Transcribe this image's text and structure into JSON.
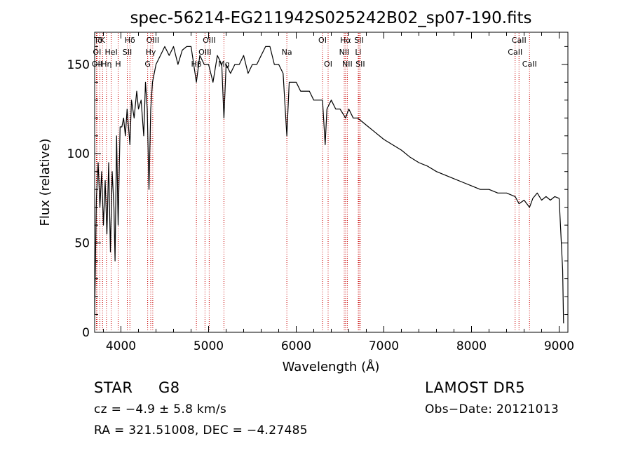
{
  "chart_data": {
    "type": "line",
    "title": "spec-56214-EG211942S025242B02_sp07-190.fits",
    "xlabel": "Wavelength (Å)",
    "ylabel": "Flux (relative)",
    "xlim": [
      3700,
      9100
    ],
    "ylim": [
      0,
      168
    ],
    "xticks": [
      4000,
      5000,
      6000,
      7000,
      8000,
      9000
    ],
    "yticks": [
      0,
      50,
      100,
      150
    ],
    "grid": false,
    "line_color": "#000000",
    "marker_color": "#c80000",
    "series": [
      {
        "x": [
          3700,
          3720,
          3740,
          3760,
          3780,
          3800,
          3820,
          3840,
          3860,
          3880,
          3900,
          3920,
          3933,
          3950,
          3968,
          3990,
          4010,
          4030,
          4050,
          4070,
          4102,
          4120,
          4150,
          4180,
          4200,
          4230,
          4260,
          4280,
          4300,
          4320,
          4340,
          4360,
          4400,
          4450,
          4500,
          4550,
          4600,
          4650,
          4700,
          4750,
          4800,
          4861,
          4900,
          4950,
          5000,
          5050,
          5100,
          5150,
          5175,
          5200,
          5250,
          5300,
          5350,
          5400,
          5450,
          5500,
          5550,
          5600,
          5650,
          5700,
          5750,
          5800,
          5850,
          5893,
          5920,
          5950,
          6000,
          6050,
          6100,
          6150,
          6200,
          6250,
          6300,
          6330,
          6350,
          6400,
          6450,
          6500,
          6563,
          6600,
          6650,
          6700,
          6750,
          6800,
          6900,
          7000,
          7100,
          7200,
          7300,
          7400,
          7500,
          7600,
          7700,
          7800,
          7900,
          8000,
          8100,
          8200,
          8300,
          8400,
          8498,
          8542,
          8600,
          8662,
          8700,
          8750,
          8800,
          8850,
          8900,
          8950,
          9000,
          9040,
          9050
        ],
        "y": [
          10,
          75,
          95,
          70,
          90,
          60,
          85,
          55,
          95,
          45,
          90,
          70,
          40,
          110,
          60,
          115,
          115,
          120,
          110,
          125,
          105,
          130,
          120,
          135,
          125,
          130,
          110,
          140,
          125,
          80,
          125,
          140,
          150,
          155,
          160,
          155,
          160,
          150,
          158,
          160,
          160,
          140,
          155,
          150,
          150,
          140,
          155,
          150,
          120,
          150,
          145,
          150,
          150,
          155,
          145,
          150,
          150,
          155,
          160,
          160,
          150,
          150,
          145,
          110,
          140,
          140,
          140,
          135,
          135,
          135,
          130,
          130,
          130,
          105,
          125,
          130,
          125,
          125,
          120,
          125,
          120,
          120,
          118,
          116,
          112,
          108,
          105,
          102,
          98,
          95,
          93,
          90,
          88,
          86,
          84,
          82,
          80,
          80,
          78,
          78,
          76,
          72,
          74,
          70,
          75,
          78,
          74,
          76,
          74,
          76,
          75,
          35,
          5
        ]
      }
    ],
    "line_markers": [
      {
        "label": "T",
        "x": 3720,
        "row": 0
      },
      {
        "label": "δ",
        "x": 3760,
        "row": 0
      },
      {
        "label": "K",
        "x": 3790,
        "row": 0
      },
      {
        "label": "Hδ",
        "x": 4102,
        "row": 0
      },
      {
        "label": "OIII",
        "x": 4363,
        "row": 0
      },
      {
        "label": "OIII",
        "x": 5007,
        "row": 0
      },
      {
        "label": "OI",
        "x": 6300,
        "row": 0
      },
      {
        "label": "Hα",
        "x": 6563,
        "row": 0
      },
      {
        "label": "SII",
        "x": 6717,
        "row": 0
      },
      {
        "label": "CaII",
        "x": 8542,
        "row": 0
      },
      {
        "label": "OI",
        "x": 3727,
        "row": 1
      },
      {
        "label": "HeI",
        "x": 3889,
        "row": 1
      },
      {
        "label": "SII",
        "x": 4072,
        "row": 1
      },
      {
        "label": "Hγ",
        "x": 4340,
        "row": 1
      },
      {
        "label": "OIII",
        "x": 4959,
        "row": 1
      },
      {
        "label": "Na",
        "x": 5893,
        "row": 1
      },
      {
        "label": "NII",
        "x": 6548,
        "row": 1
      },
      {
        "label": "Li",
        "x": 6708,
        "row": 1
      },
      {
        "label": "CaII",
        "x": 8498,
        "row": 1
      },
      {
        "label": "OII",
        "x": 3727,
        "row": 2
      },
      {
        "label": "Hη",
        "x": 3835,
        "row": 2
      },
      {
        "label": "H",
        "x": 3968,
        "row": 2
      },
      {
        "label": "G",
        "x": 4305,
        "row": 2
      },
      {
        "label": "Hβ",
        "x": 4861,
        "row": 2
      },
      {
        "label": "Mg",
        "x": 5175,
        "row": 2
      },
      {
        "label": "OI",
        "x": 6364,
        "row": 2
      },
      {
        "label": "NII",
        "x": 6583,
        "row": 2
      },
      {
        "label": "SII",
        "x": 6731,
        "row": 2
      },
      {
        "label": "CaII",
        "x": 8662,
        "row": 2
      }
    ]
  },
  "info": {
    "object_class": "STAR",
    "subclass": "G8",
    "survey": "LAMOST DR5",
    "cz": "cz = −4.9 ± 5.8 km/s",
    "obs_date": "Obs−Date: 20121013",
    "coords": "RA = 321.51008, DEC =  −4.27485"
  }
}
